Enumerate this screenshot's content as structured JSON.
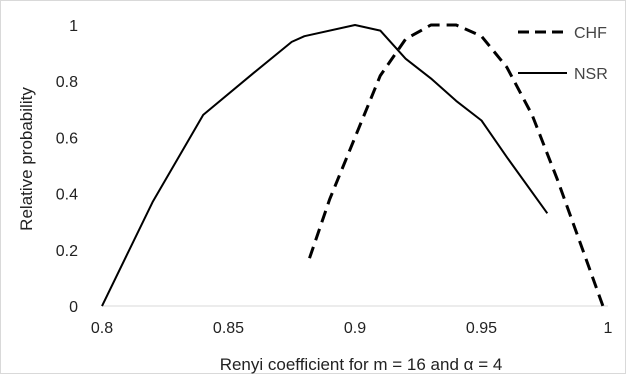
{
  "chart_data": {
    "type": "line",
    "title": "",
    "xlabel": "Renyi coefficient for m = 16 and α = 4",
    "ylabel": "Relative probability",
    "xlim": [
      0.8,
      1.0
    ],
    "ylim": [
      0,
      1
    ],
    "x_ticks": [
      "0.8",
      "0.85",
      "0.9",
      "0.95",
      "1"
    ],
    "y_ticks": [
      "0",
      "0.2",
      "0.4",
      "0.6",
      "0.8",
      "1"
    ],
    "grid": false,
    "legend_position": "top-right",
    "series": [
      {
        "name": "CHF",
        "line_style": "dashed",
        "color": "#000000",
        "x": [
          0.882,
          0.89,
          0.9,
          0.91,
          0.92,
          0.93,
          0.94,
          0.95,
          0.96,
          0.97,
          0.98,
          0.99,
          0.998
        ],
        "y": [
          0.17,
          0.38,
          0.6,
          0.82,
          0.95,
          1.0,
          1.0,
          0.96,
          0.85,
          0.68,
          0.45,
          0.2,
          0.0
        ]
      },
      {
        "name": "NSR",
        "line_style": "solid",
        "color": "#000000",
        "x": [
          0.8,
          0.82,
          0.84,
          0.86,
          0.875,
          0.88,
          0.9,
          0.91,
          0.92,
          0.93,
          0.94,
          0.95,
          0.96,
          0.976
        ],
        "y": [
          0.0,
          0.37,
          0.68,
          0.83,
          0.94,
          0.96,
          1.0,
          0.98,
          0.88,
          0.81,
          0.73,
          0.66,
          0.53,
          0.33
        ]
      }
    ]
  }
}
